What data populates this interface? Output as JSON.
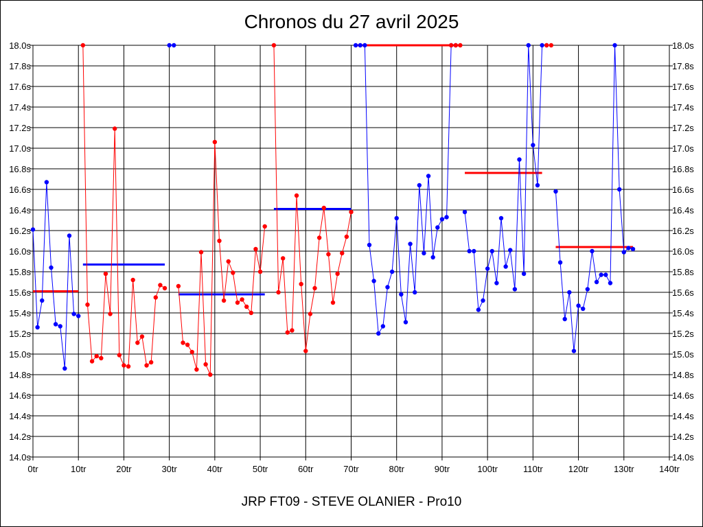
{
  "chart_data": {
    "type": "line",
    "title": "Chronos du 27 avril 2025",
    "subtitle": "JRP FT09 - STEVE OLANIER - Pro10",
    "xlim": [
      0,
      140
    ],
    "ylim": [
      14.0,
      18.0
    ],
    "x_ticks": [
      0,
      10,
      20,
      30,
      40,
      50,
      60,
      70,
      80,
      90,
      100,
      110,
      120,
      130,
      140
    ],
    "x_tick_labels": [
      "0tr",
      "10tr",
      "20tr",
      "30tr",
      "40tr",
      "50tr",
      "60tr",
      "70tr",
      "80tr",
      "90tr",
      "100tr",
      "110tr",
      "120tr",
      "130tr",
      "140tr"
    ],
    "y_ticks": [
      14.0,
      14.2,
      14.4,
      14.6,
      14.8,
      15.0,
      15.2,
      15.4,
      15.6,
      15.8,
      16.0,
      16.2,
      16.4,
      16.6,
      16.8,
      17.0,
      17.2,
      17.4,
      17.6,
      17.8,
      18.0
    ],
    "y_tick_labels": [
      "14.0s",
      "14.2s",
      "14.4s",
      "14.6s",
      "14.8s",
      "15.0s",
      "15.2s",
      "15.4s",
      "15.6s",
      "15.8s",
      "16.0s",
      "16.2s",
      "16.4s",
      "16.6s",
      "16.8s",
      "17.0s",
      "17.2s",
      "17.4s",
      "17.6s",
      "17.8s",
      "18.0s"
    ],
    "grid": true,
    "colors": {
      "blue": "#0000ff",
      "red": "#ff0000"
    },
    "series": [
      {
        "color": "#0000ff",
        "points": [
          [
            0,
            16.21
          ],
          [
            1,
            15.26
          ],
          [
            2,
            15.52
          ],
          [
            3,
            16.67
          ],
          [
            4,
            15.84
          ],
          [
            5,
            15.29
          ],
          [
            6,
            15.27
          ],
          [
            7,
            14.86
          ],
          [
            8,
            16.15
          ],
          [
            9,
            15.39
          ],
          [
            10,
            15.37
          ]
        ]
      },
      {
        "color": "#ff0000",
        "points": [
          [
            11,
            18.0
          ],
          [
            12,
            15.48
          ],
          [
            13,
            14.93
          ],
          [
            14,
            14.98
          ],
          [
            15,
            14.96
          ],
          [
            16,
            15.78
          ],
          [
            17,
            15.39
          ],
          [
            18,
            17.19
          ],
          [
            19,
            14.99
          ],
          [
            20,
            14.89
          ],
          [
            21,
            14.88
          ],
          [
            22,
            15.72
          ],
          [
            23,
            15.11
          ],
          [
            24,
            15.17
          ],
          [
            25,
            14.89
          ],
          [
            26,
            14.92
          ],
          [
            27,
            15.55
          ],
          [
            28,
            15.67
          ],
          [
            29,
            15.64
          ]
        ]
      },
      {
        "color": "#0000ff",
        "points": [
          [
            30,
            18.0
          ],
          [
            31,
            18.0
          ]
        ]
      },
      {
        "color": "#ff0000",
        "points": [
          [
            32,
            15.66
          ],
          [
            33,
            15.11
          ],
          [
            34,
            15.09
          ],
          [
            35,
            15.02
          ],
          [
            36,
            14.85
          ],
          [
            37,
            15.99
          ],
          [
            38,
            14.9
          ],
          [
            39,
            14.8
          ],
          [
            40,
            17.06
          ],
          [
            41,
            16.1
          ],
          [
            42,
            15.52
          ],
          [
            43,
            15.9
          ],
          [
            44,
            15.79
          ],
          [
            45,
            15.5
          ],
          [
            46,
            15.53
          ],
          [
            47,
            15.46
          ],
          [
            48,
            15.4
          ],
          [
            49,
            16.02
          ],
          [
            50,
            15.8
          ],
          [
            51,
            16.24
          ]
        ]
      },
      {
        "color": "#ff0000",
        "points": [
          [
            53,
            18.0
          ],
          [
            54,
            15.6
          ],
          [
            55,
            15.93
          ],
          [
            56,
            15.21
          ],
          [
            57,
            15.23
          ],
          [
            58,
            16.54
          ],
          [
            59,
            15.68
          ],
          [
            60,
            15.03
          ],
          [
            61,
            15.39
          ],
          [
            62,
            15.64
          ],
          [
            63,
            16.13
          ],
          [
            64,
            16.42
          ],
          [
            65,
            15.97
          ],
          [
            66,
            15.5
          ],
          [
            67,
            15.78
          ],
          [
            68,
            15.98
          ],
          [
            69,
            16.14
          ],
          [
            70,
            16.38
          ]
        ]
      },
      {
        "color": "#0000ff",
        "points": [
          [
            71,
            18.0
          ],
          [
            72,
            18.0
          ],
          [
            73,
            18.0
          ],
          [
            74,
            16.06
          ],
          [
            75,
            15.71
          ],
          [
            76,
            15.2
          ],
          [
            77,
            15.27
          ],
          [
            78,
            15.65
          ],
          [
            79,
            15.8
          ],
          [
            80,
            16.32
          ],
          [
            81,
            15.58
          ],
          [
            82,
            15.31
          ],
          [
            83,
            16.07
          ],
          [
            84,
            15.6
          ],
          [
            85,
            16.64
          ],
          [
            86,
            15.98
          ],
          [
            87,
            16.73
          ],
          [
            88,
            15.94
          ],
          [
            89,
            16.23
          ],
          [
            90,
            16.31
          ],
          [
            91,
            16.33
          ],
          [
            92,
            18.0
          ],
          [
            93,
            18.0
          ]
        ]
      },
      {
        "color": "#ff0000",
        "points": [
          [
            92,
            18.0
          ],
          [
            93,
            18.0
          ],
          [
            94,
            18.0
          ]
        ]
      },
      {
        "color": "#0000ff",
        "points": [
          [
            95,
            16.38
          ],
          [
            96,
            16.0
          ],
          [
            97,
            16.0
          ],
          [
            98,
            15.43
          ],
          [
            99,
            15.52
          ],
          [
            100,
            15.83
          ],
          [
            101,
            16.0
          ],
          [
            102,
            15.69
          ],
          [
            103,
            16.32
          ],
          [
            104,
            15.85
          ],
          [
            105,
            16.01
          ],
          [
            106,
            15.63
          ],
          [
            107,
            16.89
          ],
          [
            108,
            15.78
          ],
          [
            109,
            18.0
          ],
          [
            110,
            17.03
          ],
          [
            111,
            16.64
          ],
          [
            112,
            18.0
          ],
          [
            113,
            18.0
          ]
        ]
      },
      {
        "color": "#ff0000",
        "points": [
          [
            113,
            18.0
          ],
          [
            114,
            18.0
          ]
        ]
      },
      {
        "color": "#0000ff",
        "points": [
          [
            115,
            16.58
          ],
          [
            116,
            15.89
          ],
          [
            117,
            15.34
          ],
          [
            118,
            15.6
          ],
          [
            119,
            15.03
          ],
          [
            120,
            15.47
          ],
          [
            121,
            15.44
          ],
          [
            122,
            15.63
          ],
          [
            123,
            16.0
          ],
          [
            124,
            15.7
          ],
          [
            125,
            15.77
          ],
          [
            126,
            15.77
          ],
          [
            127,
            15.69
          ],
          [
            128,
            18.0
          ],
          [
            129,
            16.6
          ],
          [
            130,
            15.99
          ],
          [
            131,
            16.03
          ],
          [
            132,
            16.02
          ]
        ]
      }
    ],
    "averages": [
      {
        "color": "#ff0000",
        "x": [
          0,
          10
        ],
        "y": 15.61
      },
      {
        "color": "#0000ff",
        "x": [
          11,
          29
        ],
        "y": 15.87
      },
      {
        "color": "#0000ff",
        "x": [
          32,
          51
        ],
        "y": 15.58
      },
      {
        "color": "#0000ff",
        "x": [
          53,
          70
        ],
        "y": 16.41
      },
      {
        "color": "#ff0000",
        "x": [
          71,
          94
        ],
        "y": 18.0
      },
      {
        "color": "#ff0000",
        "x": [
          95,
          112
        ],
        "y": 16.76
      },
      {
        "color": "#ff0000",
        "x": [
          115,
          132
        ],
        "y": 16.04
      }
    ]
  }
}
